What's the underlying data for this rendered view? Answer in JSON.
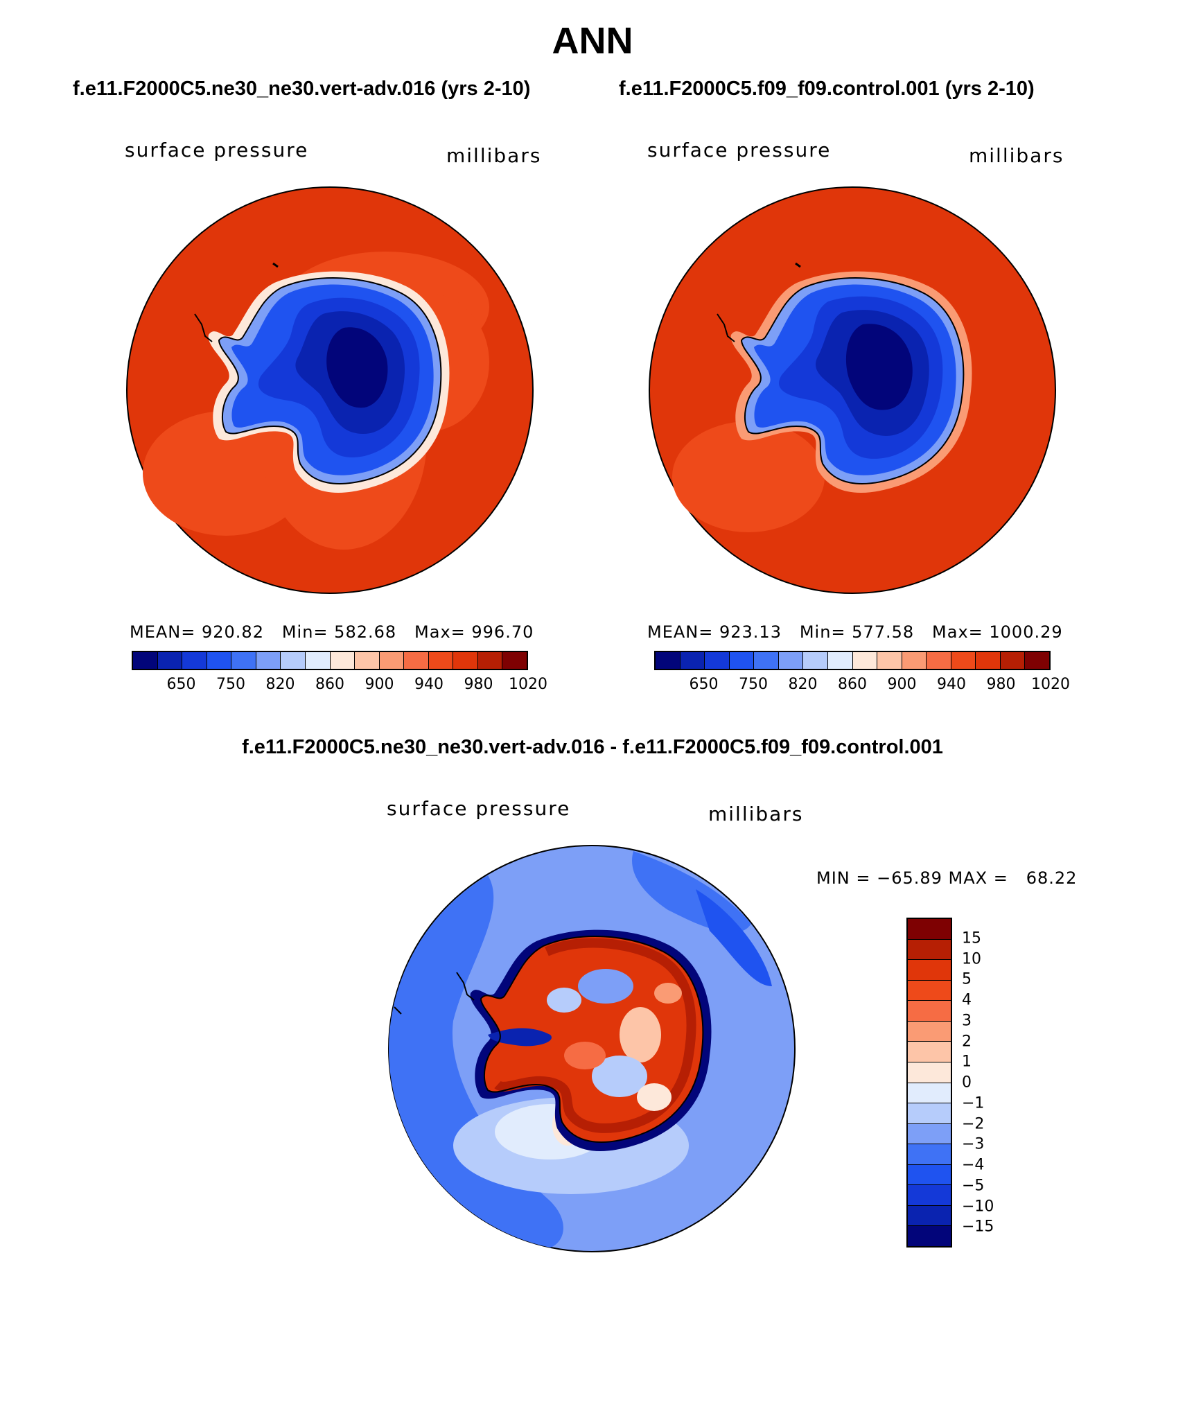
{
  "title": "ANN",
  "panels": [
    {
      "case": "f.e11.F2000C5.ne30_ne30.vert-adv.016 (yrs 2-10)",
      "variable": "surface pressure",
      "units": "millibars",
      "stats": "MEAN= 920.82   Min= 582.68   Max= 996.70",
      "ticks": [
        "650",
        "750",
        "820",
        "860",
        "900",
        "940",
        "980",
        "1020"
      ]
    },
    {
      "case": "f.e11.F2000C5.f09_f09.control.001 (yrs 2-10)",
      "variable": "surface pressure",
      "units": "millibars",
      "stats": "MEAN= 923.13   Min= 577.58   Max= 1000.29",
      "ticks": [
        "650",
        "750",
        "820",
        "860",
        "900",
        "940",
        "980",
        "1020"
      ]
    }
  ],
  "diff": {
    "case": "f.e11.F2000C5.ne30_ne30.vert-adv.016 - f.e11.F2000C5.f09_f09.control.001",
    "variable": "surface pressure",
    "units": "millibars",
    "stats": "MIN = −65.89 MAX =   68.22",
    "ticks": [
      "15",
      "10",
      "5",
      "4",
      "3",
      "2",
      "1",
      "0",
      "−1",
      "−2",
      "−3",
      "−4",
      "−5",
      "−10",
      "−15"
    ]
  },
  "colors": {
    "abs_scale": [
      "#02057a",
      "#0a23b0",
      "#1439d8",
      "#1f53f0",
      "#3f72f5",
      "#7d9ff7",
      "#b6ccfb",
      "#e1ecfd",
      "#fde8da",
      "#fdc5a8",
      "#fa9b74",
      "#f66c44",
      "#ee4a1a",
      "#e0360a",
      "#b61f04",
      "#7e0102"
    ],
    "diff_scale": [
      "#7e0102",
      "#b61f04",
      "#e0360a",
      "#ee4a1a",
      "#f66c44",
      "#fa9b74",
      "#fdc5a8",
      "#fde8da",
      "#e1ecfd",
      "#b6ccfb",
      "#7d9ff7",
      "#3f72f5",
      "#1f53f0",
      "#1439d8",
      "#0a23b0",
      "#02057a"
    ]
  }
}
